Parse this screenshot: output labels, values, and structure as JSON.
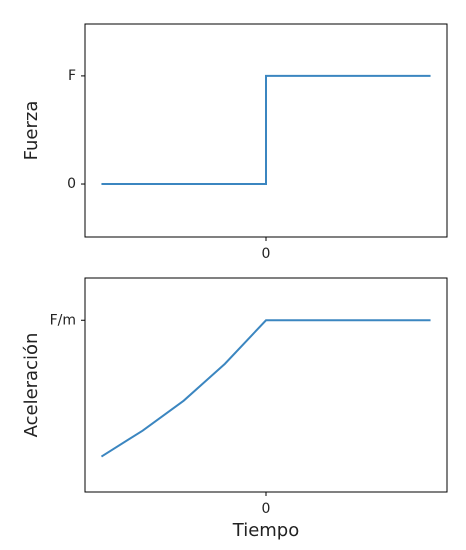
{
  "chart_data": [
    {
      "type": "line",
      "ylabel": "Fuerza",
      "x": [
        -1,
        0,
        0,
        1
      ],
      "series": [
        {
          "color": "#3b86c0",
          "values": [
            0,
            0,
            1,
            1
          ]
        }
      ],
      "xlim": [
        -1.1,
        1.1
      ],
      "xticks": [
        0
      ],
      "ylim": [
        -0.49,
        1.48
      ],
      "yticks": [
        0,
        {
          "value": 1,
          "label": "F"
        }
      ]
    },
    {
      "type": "line",
      "ylabel": "Aceleración",
      "xlabel": "Tiempo",
      "x": [
        -1,
        -0.75,
        -0.5,
        -0.25,
        0,
        1
      ],
      "series": [
        {
          "color": "#3b86c0",
          "values": [
            0,
            0.19,
            0.41,
            0.68,
            1,
            1
          ]
        }
      ],
      "xlim": [
        -1.1,
        1.1
      ],
      "xticks": [
        0
      ],
      "ylim": [
        -0.26,
        1.31
      ],
      "yticks": [
        {
          "value": 1,
          "label": "F/m"
        }
      ]
    }
  ]
}
